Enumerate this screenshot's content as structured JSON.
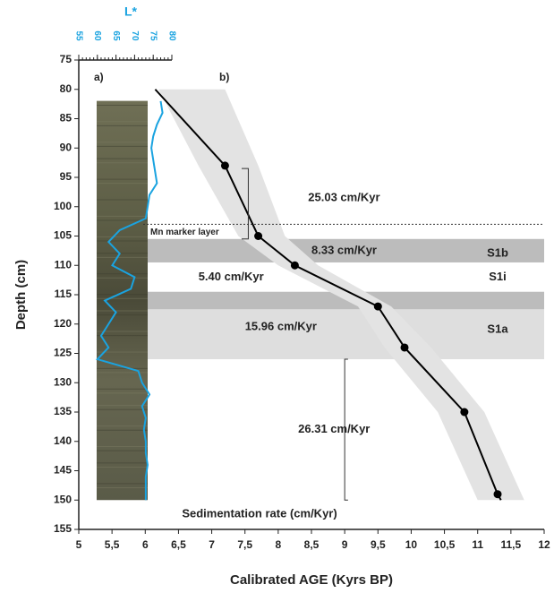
{
  "chart_data": {
    "type": "line",
    "xlabel": "Calibrated AGE (Kyrs BP)",
    "ylabel": "Depth (cm)",
    "xlim": [
      5,
      12
    ],
    "xticks": [
      5,
      {
        "value": 5.5,
        "label": "5,5"
      },
      6,
      {
        "value": 6.5,
        "label": "6,5"
      },
      7,
      {
        "value": 7.5,
        "label": "7,5"
      },
      8,
      {
        "value": 8.5,
        "label": "8,5"
      },
      9,
      {
        "value": 9.5,
        "label": "9,5"
      },
      10,
      {
        "value": 10.5,
        "label": "10,5"
      },
      11,
      {
        "value": 11.5,
        "label": "11,5"
      },
      12
    ],
    "ylim": [
      75,
      155
    ],
    "yticks": [
      75,
      80,
      85,
      90,
      95,
      100,
      105,
      110,
      115,
      120,
      125,
      130,
      135,
      140,
      145,
      150,
      155
    ],
    "y_inverted": true,
    "line": {
      "color": "#000000",
      "x": [
        6.15,
        7.2,
        7.7,
        8.25,
        9.5,
        9.9,
        10.8,
        11.3,
        11.35
      ],
      "y": [
        80,
        93,
        105,
        110,
        117,
        124,
        135,
        149,
        150
      ]
    },
    "samples": {
      "color": "#000000",
      "x": [
        7.2,
        7.7,
        8.25,
        9.5,
        9.9,
        10.8,
        11.3
      ],
      "y": [
        93,
        105,
        110,
        117,
        124,
        135,
        149
      ]
    },
    "band": {
      "color": "#e3e3e3",
      "depth": [
        80,
        93,
        105,
        110,
        117,
        124,
        135,
        150
      ],
      "lower": [
        6.2,
        6.8,
        7.4,
        8.0,
        9.2,
        9.6,
        10.4,
        11.0
      ],
      "upper": [
        7.2,
        7.7,
        8.1,
        8.6,
        9.7,
        10.3,
        11.1,
        11.7
      ]
    },
    "layers": [
      {
        "top": 105.5,
        "bottom": 109.5,
        "color": "#bcbcbc"
      },
      {
        "top": 114.5,
        "bottom": 117.5,
        "color": "#bcbcbc"
      },
      {
        "top": 117.5,
        "bottom": 126,
        "color": "#dedede"
      }
    ],
    "sapropel_labels": [
      "S1b",
      "S1i",
      "S1a"
    ],
    "rate_labels": [
      "25.03 cm/Kyr",
      "8.33 cm/Kyr",
      "5.40 cm/Kyr",
      "15.96 cm/Kyr",
      "26.31 cm/Kyr"
    ],
    "mn_marker": {
      "label": "Mn marker layer",
      "depth": 103
    },
    "panel_labels": [
      "a)",
      "b)"
    ],
    "caption": "Sedimentation rate (cm/Kyr)",
    "lstar": {
      "label": "L*",
      "color": "#1aa3e0",
      "lim": [
        55,
        80
      ],
      "ticks": [
        55,
        60,
        65,
        70,
        75,
        80
      ],
      "depth": [
        82,
        84,
        86,
        88,
        90,
        92,
        94,
        96,
        98,
        100,
        102,
        104,
        106,
        108,
        110,
        112,
        114,
        116,
        118,
        120,
        122,
        124,
        126,
        128,
        130,
        132,
        134,
        136,
        138,
        140,
        142,
        144,
        146,
        148,
        150
      ],
      "values": [
        77,
        77.5,
        76,
        75,
        74.5,
        75,
        75.5,
        76,
        74,
        73.5,
        73,
        66,
        63,
        66,
        64,
        70,
        69,
        62,
        65,
        63,
        61,
        63,
        60,
        71,
        72,
        74,
        72,
        73,
        72.5,
        73,
        73,
        73.5,
        73,
        73,
        73
      ]
    }
  }
}
